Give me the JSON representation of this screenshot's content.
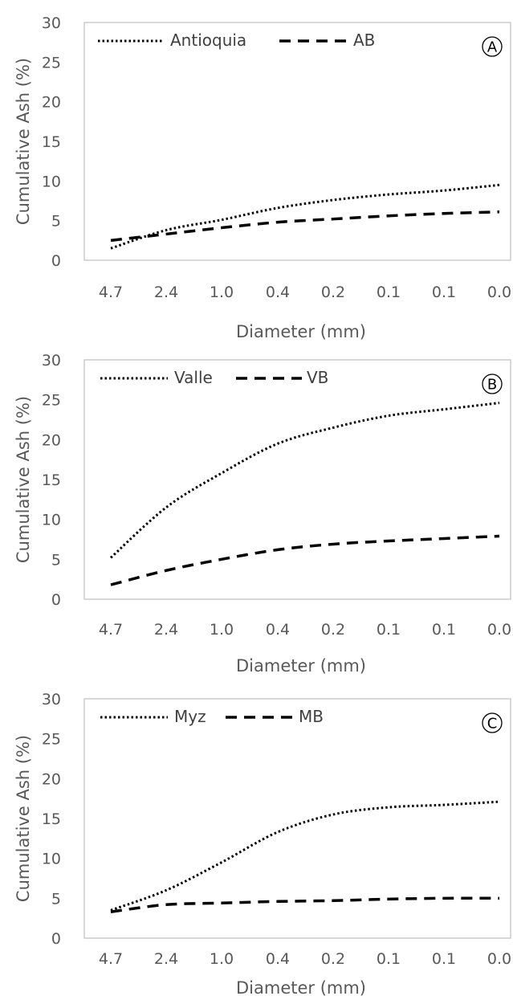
{
  "chart_data": [
    {
      "type": "line",
      "badge": "A",
      "categories": [
        "4.7",
        "2.4",
        "1.0",
        "0.4",
        "0.2",
        "0.1",
        "0.1",
        "0.0"
      ],
      "xlabel": "Diameter (mm)",
      "ylabel": "Cumulative Ash (%)",
      "ylim": [
        0,
        30
      ],
      "yticks": [
        "0",
        "5",
        "10",
        "15",
        "20",
        "25",
        "30"
      ],
      "legend": "top-left",
      "series": [
        {
          "name": "Antioquia",
          "style": "dotted",
          "values": [
            1.5,
            3.8,
            5.1,
            6.6,
            7.6,
            8.3,
            8.8,
            9.5
          ]
        },
        {
          "name": "AB",
          "style": "dashed",
          "values": [
            2.5,
            3.3,
            4.1,
            4.8,
            5.2,
            5.6,
            5.9,
            6.1
          ]
        }
      ]
    },
    {
      "type": "line",
      "badge": "B",
      "categories": [
        "4.7",
        "2.4",
        "1.0",
        "0.4",
        "0.2",
        "0.1",
        "0.1",
        "0.0"
      ],
      "xlabel": "Diameter (mm)",
      "ylabel": "Cumulative Ash (%)",
      "ylim": [
        0,
        30
      ],
      "yticks": [
        "0",
        "5",
        "10",
        "15",
        "20",
        "25",
        "30"
      ],
      "legend": "top-left",
      "series": [
        {
          "name": "Valle",
          "style": "dotted",
          "values": [
            5.2,
            11.5,
            15.8,
            19.5,
            21.5,
            23.0,
            23.8,
            24.6
          ]
        },
        {
          "name": "VB",
          "style": "dashed",
          "values": [
            1.8,
            3.6,
            5.0,
            6.2,
            6.9,
            7.3,
            7.6,
            7.9
          ]
        }
      ]
    },
    {
      "type": "line",
      "badge": "C",
      "categories": [
        "4.7",
        "2.4",
        "1.0",
        "0.4",
        "0.2",
        "0.1",
        "0.1",
        "0.0"
      ],
      "xlabel": "Diameter (mm)",
      "ylabel": "Cumulative Ash (%)",
      "ylim": [
        0,
        30
      ],
      "yticks": [
        "0",
        "5",
        "10",
        "15",
        "20",
        "25",
        "30"
      ],
      "legend": "top-left",
      "series": [
        {
          "name": "Myz",
          "style": "dotted",
          "values": [
            3.5,
            6.0,
            9.5,
            13.3,
            15.5,
            16.4,
            16.7,
            17.1
          ]
        },
        {
          "name": "MB",
          "style": "dashed",
          "values": [
            3.3,
            4.2,
            4.4,
            4.6,
            4.7,
            4.9,
            5.0,
            5.0
          ]
        }
      ]
    }
  ]
}
